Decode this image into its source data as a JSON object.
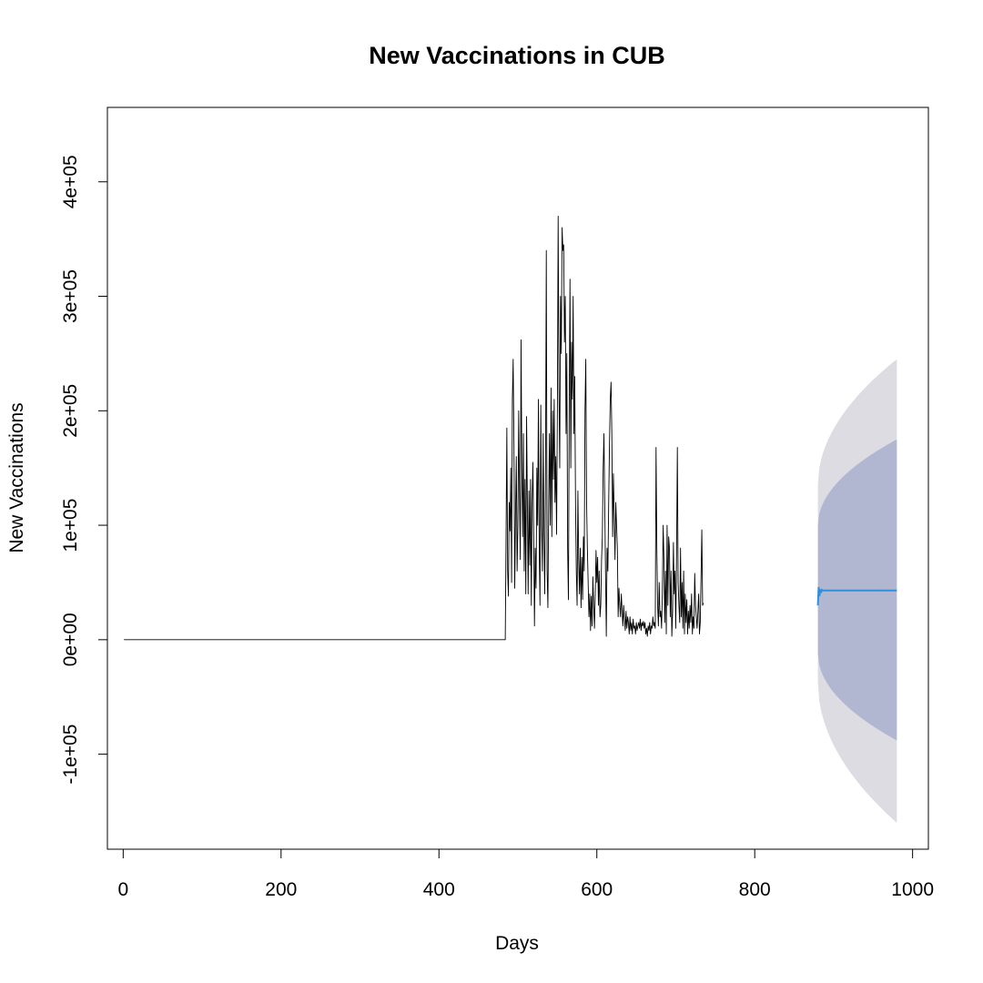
{
  "chart_data": {
    "type": "line",
    "title": "New Vaccinations in CUB",
    "xlabel": "Days",
    "ylabel": "New Vaccinations",
    "xlim": [
      -20,
      1020
    ],
    "ylim": [
      -183000,
      465000
    ],
    "x_ticks": [
      0,
      200,
      400,
      600,
      800,
      1000
    ],
    "y_ticks": [
      -100000,
      0,
      100000,
      200000,
      300000,
      400000
    ],
    "x_tick_labels": [
      "0",
      "200",
      "400",
      "600",
      "800",
      "1000"
    ],
    "y_tick_labels": [
      "-1e+05",
      "0e+00",
      "1e+05",
      "2e+05",
      "3e+05",
      "4e+05"
    ],
    "grid": false,
    "colors": {
      "history": "#000000",
      "forecast": "#2f8fd8",
      "band_95": "#dcdce2",
      "band_80": "#b2b7d1"
    },
    "series": [
      {
        "role": "history",
        "x_start": 1,
        "values": [
          0,
          0,
          0,
          0,
          0,
          0,
          0,
          0,
          0,
          0,
          0,
          0,
          0,
          0,
          0,
          0,
          0,
          0,
          0,
          0,
          0,
          0,
          0,
          0,
          0,
          0,
          0,
          0,
          0,
          0,
          0,
          0,
          0,
          0,
          0,
          0,
          0,
          0,
          0,
          0,
          0,
          0,
          0,
          0,
          0,
          0,
          0,
          0,
          0,
          0,
          0,
          0,
          0,
          0,
          0,
          0,
          0,
          0,
          0,
          0,
          0,
          0,
          0,
          0,
          0,
          0,
          0,
          0,
          0,
          0,
          0,
          0,
          0,
          0,
          0,
          0,
          0,
          0,
          0,
          0,
          0,
          0,
          0,
          0,
          0,
          0,
          0,
          0,
          0,
          0,
          0,
          0,
          0,
          0,
          0,
          0,
          0,
          0,
          0,
          0,
          0,
          0,
          0,
          0,
          0,
          0,
          0,
          0,
          0,
          0,
          0,
          0,
          0,
          0,
          0,
          0,
          0,
          0,
          0,
          0,
          0,
          0,
          0,
          0,
          0,
          0,
          0,
          0,
          0,
          0,
          0,
          0,
          0,
          0,
          0,
          0,
          0,
          0,
          0,
          0,
          0,
          0,
          0,
          0,
          0,
          0,
          0,
          0,
          0,
          0,
          0,
          0,
          0,
          0,
          0,
          0,
          0,
          0,
          0,
          0,
          0,
          0,
          0,
          0,
          0,
          0,
          0,
          0,
          0,
          0,
          0,
          0,
          0,
          0,
          0,
          0,
          0,
          0,
          0,
          0,
          0,
          0,
          0,
          0,
          0,
          0,
          0,
          0,
          0,
          0,
          0,
          0,
          0,
          0,
          0,
          0,
          0,
          0,
          0,
          0,
          0,
          0,
          0,
          0,
          0,
          0,
          0,
          0,
          0,
          0,
          0,
          0,
          0,
          0,
          0,
          0,
          0,
          0,
          0,
          0,
          0,
          0,
          0,
          0,
          0,
          0,
          0,
          0,
          0,
          0,
          0,
          0,
          0,
          0,
          0,
          0,
          0,
          0,
          0,
          0,
          0,
          0,
          0,
          0,
          0,
          0,
          0,
          0,
          0,
          0,
          0,
          0,
          0,
          0,
          0,
          0,
          0,
          0,
          0,
          0,
          0,
          0,
          0,
          0,
          0,
          0,
          0,
          0,
          0,
          0,
          0,
          0,
          0,
          0,
          0,
          0,
          0,
          0,
          0,
          0,
          0,
          0,
          0,
          0,
          0,
          0,
          0,
          0,
          0,
          0,
          0,
          0,
          0,
          0,
          0,
          0,
          0,
          0,
          0,
          0,
          0,
          0,
          0,
          0,
          0,
          0,
          0,
          0,
          0,
          0,
          0,
          0,
          0,
          0,
          0,
          0,
          0,
          0,
          0,
          0,
          0,
          0,
          0,
          0,
          0,
          0,
          0,
          0,
          0,
          0,
          0,
          0,
          0,
          0,
          0,
          0,
          0,
          0,
          0,
          0,
          0,
          0,
          0,
          0,
          0,
          0,
          0,
          0,
          0,
          0,
          0,
          0,
          0,
          0,
          0,
          0,
          0,
          0,
          0,
          0,
          0,
          0,
          0,
          0,
          0,
          0,
          0,
          0,
          0,
          0,
          0,
          0,
          0,
          0,
          0,
          0,
          0,
          0,
          0,
          0,
          0,
          0,
          0,
          0,
          0,
          0,
          0,
          0,
          0,
          0,
          0,
          0,
          0,
          0,
          0,
          0,
          0,
          0,
          0,
          0,
          0,
          0,
          0,
          0,
          0,
          0,
          0,
          0,
          0,
          0,
          0,
          0,
          0,
          0,
          0,
          0,
          0,
          0,
          0,
          0,
          0,
          0,
          0,
          0,
          0,
          0,
          0,
          0,
          0,
          0,
          0,
          0,
          0,
          0,
          0,
          0,
          0,
          0,
          0,
          0,
          0,
          0,
          0,
          0,
          0,
          0,
          0,
          0,
          0,
          0,
          0,
          0,
          0,
          0,
          0,
          0,
          0,
          0,
          0,
          0,
          0,
          0,
          0,
          0,
          0,
          0,
          0,
          0,
          0,
          0,
          0,
          0,
          0,
          0,
          0,
          0,
          0,
          0,
          0,
          0,
          0,
          0,
          0,
          0,
          90000,
          185000,
          60000,
          38000,
          120000,
          95000,
          150000,
          50000,
          210000,
          245000,
          170000,
          45000,
          110000,
          160000,
          60000,
          100000,
          200000,
          130000,
          70000,
          262000,
          150000,
          90000,
          180000,
          60000,
          140000,
          40000,
          195000,
          120000,
          40000,
          130000,
          65000,
          140000,
          30000,
          120000,
          155000,
          90000,
          12000,
          80000,
          45000,
          150000,
          100000,
          210000,
          80000,
          30000,
          205000,
          100000,
          60000,
          180000,
          90000,
          40000,
          150000,
          340000,
          60000,
          28000,
          120000,
          180000,
          100000,
          220000,
          90000,
          200000,
          140000,
          210000,
          120000,
          160000,
          92000,
          200000,
          370000,
          220000,
          150000,
          300000,
          250000,
          360000,
          340000,
          345000,
          260000,
          300000,
          180000,
          250000,
          80000,
          35000,
          200000,
          315000,
          150000,
          260000,
          210000,
          300000,
          180000,
          230000,
          120000,
          60000,
          30000,
          130000,
          70000,
          40000,
          80000,
          28000,
          72000,
          35000,
          90000,
          60000,
          200000,
          245000,
          120000,
          80000,
          50000,
          20000,
          40000,
          8000,
          38000,
          12000,
          55000,
          30000,
          10000,
          40000,
          78000,
          50000,
          72000,
          30000,
          60000,
          20000,
          30000,
          70000,
          90000,
          150000,
          180000,
          120000,
          60000,
          3000,
          80000,
          60000,
          120000,
          170000,
          210000,
          225000,
          180000,
          90000,
          145000,
          110000,
          70000,
          120000,
          100000,
          80000,
          20000,
          45000,
          30000,
          20000,
          40000,
          25000,
          12000,
          30000,
          18000,
          8000,
          25000,
          10000,
          20000,
          15000,
          5000,
          20000,
          8000,
          15000,
          5000,
          18000,
          10000,
          12000,
          5000,
          15000,
          8000,
          12000,
          15000,
          10000,
          18000,
          8000,
          15000,
          12000,
          16000,
          10000,
          15000,
          5000,
          10000,
          3000,
          12000,
          8000,
          15000,
          5000,
          12000,
          10000,
          20000,
          12000,
          15000,
          10000,
          168000,
          80000,
          30000,
          12000,
          50000,
          20000,
          25000,
          10000,
          40000,
          100000,
          70000,
          15000,
          60000,
          5000,
          100000,
          30000,
          90000,
          80000,
          20000,
          60000,
          3000,
          25000,
          85000,
          40000,
          60000,
          10000,
          75000,
          168000,
          50000,
          30000,
          15000,
          80000,
          20000,
          50000,
          10000,
          60000,
          5000,
          40000,
          15000,
          35000,
          5000,
          25000,
          10000,
          30000,
          15000,
          40000,
          5000,
          20000,
          10000,
          58000,
          30000,
          20000,
          10000,
          25000,
          40000,
          5000,
          15000,
          55000,
          96000,
          30000,
          32000
        ]
      },
      {
        "role": "forecast",
        "x_start": 880,
        "x_end": 980,
        "level": 43000,
        "start_wobble": [
          30000,
          46000,
          38000,
          44000,
          41000,
          43500
        ]
      }
    ],
    "bands": [
      {
        "level": "95",
        "upper_start": 135000,
        "upper_end": 245000,
        "lower_start": -37000,
        "lower_end": -160000
      },
      {
        "level": "80",
        "upper_start": 100000,
        "upper_end": 175000,
        "lower_start": -12000,
        "lower_end": -88000
      }
    ]
  }
}
